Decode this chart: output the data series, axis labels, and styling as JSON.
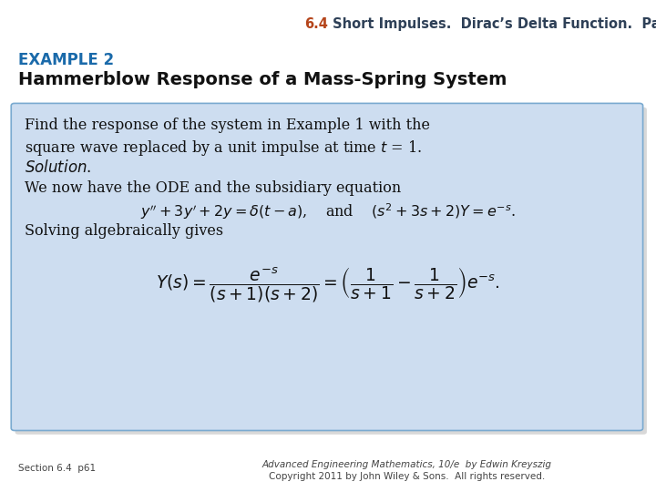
{
  "bg_color": "#ffffff",
  "header_64_color": "#b5451b",
  "header_rest_color": "#2e4057",
  "example_color": "#1a6aaa",
  "title_color": "#111111",
  "box_bg": "#cdddf0",
  "box_edge": "#7aaad0",
  "shadow_color": "#aaaaaa",
  "text_color": "#111111",
  "footer_color": "#444444",
  "header_64": "6.4",
  "header_rest": " Short Impulses.  Dirac’s Delta Function.  Partial Fractions",
  "example_label": "EXAMPLE 2",
  "title_text": "Hammerblow Response of a Mass-Spring System",
  "line1": "Find the response of the system in Example 1 with the",
  "line2": "square wave replaced by a unit impulse at time $t$ = 1.",
  "line3_italic": "Solution.",
  "line4": "We now have the ODE and the subsidiary equation",
  "ode_line": "$y'' + 3y' + 2y = \\delta(t - a)$,    and    $(s^2 + 3s + 2)Y = e^{-s}$.",
  "solving_line": "Solving algebraically gives",
  "formula": "$Y(s) = \\dfrac{e^{-s}}{(s+1)(s+2)} = \\left(\\dfrac{1}{s+1} - \\dfrac{1}{s+2}\\right)e^{-s}.$",
  "footer_left": "Section 6.4  p61",
  "footer_right1": "Advanced Engineering Mathematics, 10/e  by Edwin Kreyszig",
  "footer_right2": "Copyright 2011 by John Wiley & Sons.  All rights reserved.",
  "fig_w": 7.2,
  "fig_h": 5.4,
  "dpi": 100
}
